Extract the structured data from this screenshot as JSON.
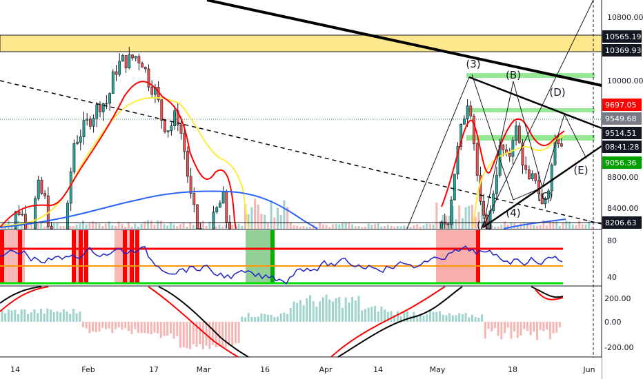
{
  "chart_data": {
    "type": "candlestick",
    "panels": [
      "price",
      "rsi",
      "macd"
    ],
    "price_axis": {
      "ticks": [
        "10800.00",
        "10000.00",
        "8800.00",
        "8400.00"
      ],
      "labels": [
        {
          "text": "10565.19",
          "bg": "#131722",
          "fg": "#ffffff"
        },
        {
          "text": "10369.93",
          "bg": "#131722",
          "fg": "#ffffff"
        },
        {
          "text": "9697.05",
          "bg": "#ff0000",
          "fg": "#ffffff"
        },
        {
          "text": "9549.68",
          "bg": "#787b86",
          "fg": "#ffffff"
        },
        {
          "text": "9514.51",
          "bg": "#131722",
          "fg": "#ffffff"
        },
        {
          "text": "08:41:28",
          "bg": "#131722",
          "fg": "#ffffff"
        },
        {
          "text": "9056.36",
          "bg": "#00a000",
          "fg": "#ffffff"
        },
        {
          "text": "8206.63",
          "bg": "#131722",
          "fg": "#ffffff"
        }
      ]
    },
    "rsi_axis": {
      "ticks": [
        "80",
        "40"
      ]
    },
    "macd_axis": {
      "ticks": [
        "200.00",
        "0.00",
        "-200.00"
      ]
    },
    "x_ticks": [
      "14",
      "Feb",
      "17",
      "Mar",
      "16",
      "Apr",
      "14",
      "May",
      "18",
      "Jun"
    ],
    "wave_labels": [
      "(3)",
      "(B)",
      "(D)",
      "(E)",
      "(C)",
      "(4)",
      "(A)"
    ],
    "colors": {
      "up": "#26a69a",
      "down": "#ef5350",
      "ema_red": "#ff0000",
      "ema_yellow": "#ffeb3b",
      "ma_blue": "#2962ff",
      "resistance_zone": "#ffe066",
      "support_zone": "#7be37b",
      "rsi_line": "#1e22c8",
      "rsi_upper": "#ff0000",
      "rsi_mid": "#ff9800",
      "rsi_lower": "#00e000",
      "macd_line": "#000000",
      "signal_line": "#ff0000"
    }
  }
}
